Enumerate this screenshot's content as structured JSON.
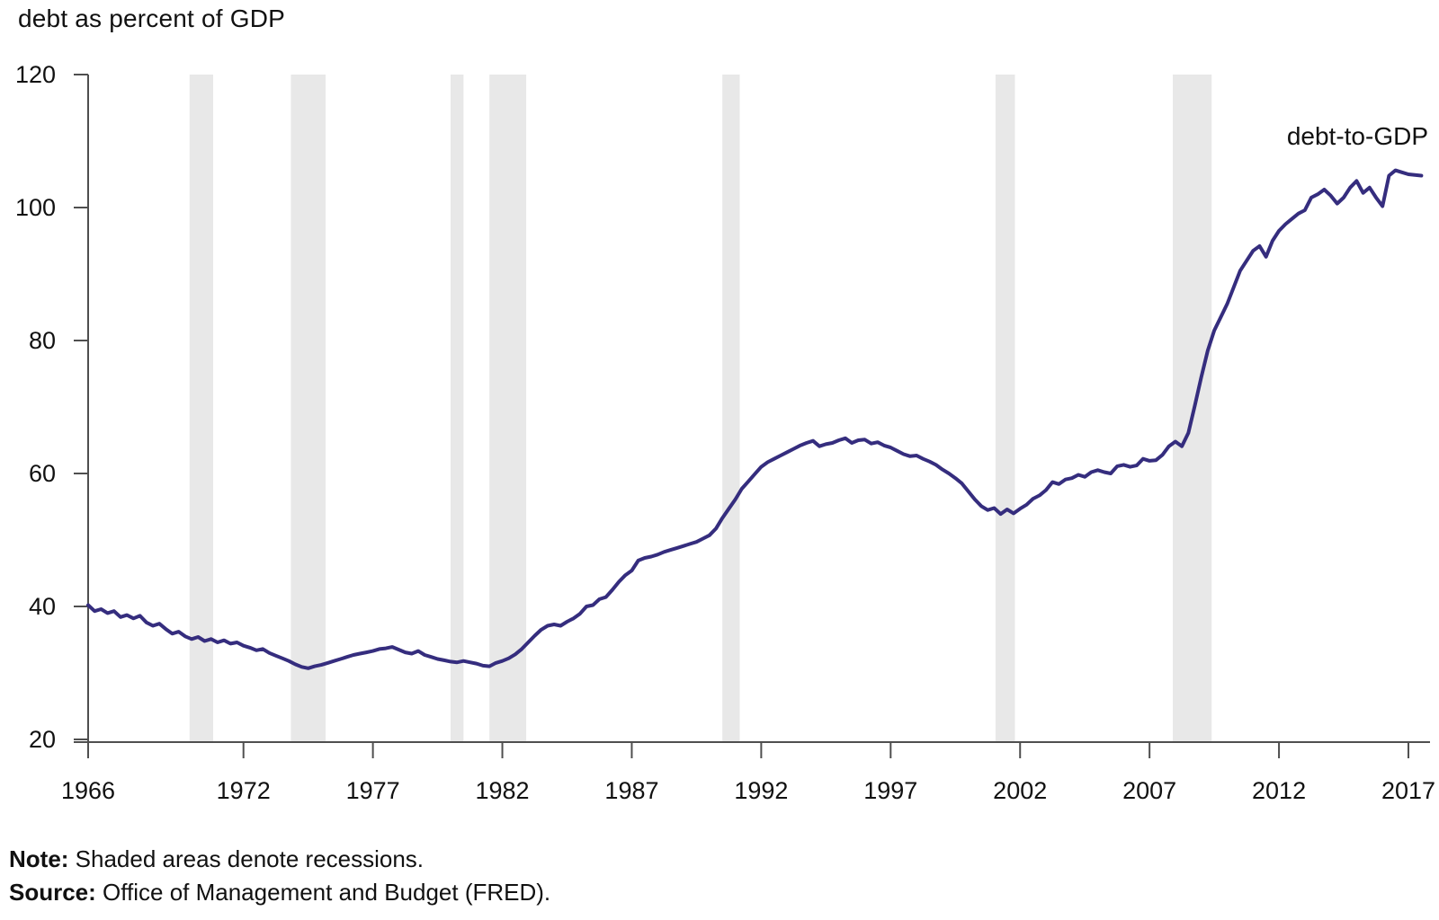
{
  "figure": {
    "title": "debt as percent of GDP",
    "series_label": "debt-to-GDP",
    "note_label": "Note:",
    "note_text": " Shaded areas denote recessions.",
    "source_label": "Source:",
    "source_text": " Office of Management and Budget (FRED).",
    "colors": {
      "line": "#352d7e",
      "recession_band": "#e8e8e8",
      "axis": "#4f4f4f",
      "text": "#111111",
      "background": "#ffffff"
    }
  },
  "chart_data": {
    "type": "line",
    "title": "debt as percent of GDP",
    "ylabel": "debt as percent of GDP",
    "xlabel": "",
    "ylim": [
      20,
      120
    ],
    "xlim": [
      1966,
      2017.84
    ],
    "grid": false,
    "legend_position": "annotation-top-right",
    "x_ticks": [
      1966,
      1972,
      1977,
      1982,
      1987,
      1992,
      1997,
      2002,
      2007,
      2012,
      2017
    ],
    "y_ticks": [
      20,
      40,
      60,
      80,
      100,
      120
    ],
    "recessions": [
      [
        1969.92,
        1970.83
      ],
      [
        1973.83,
        1975.17
      ],
      [
        1980.0,
        1980.5
      ],
      [
        1981.5,
        1982.92
      ],
      [
        1990.5,
        1991.17
      ],
      [
        2001.05,
        2001.8
      ],
      [
        2007.9,
        2009.4
      ]
    ],
    "series": [
      {
        "name": "debt-to-GDP",
        "start_year": 1966,
        "period_years": 0.25,
        "values": [
          40.2,
          39.3,
          39.6,
          39.0,
          39.3,
          38.4,
          38.7,
          38.2,
          38.6,
          37.6,
          37.1,
          37.4,
          36.6,
          35.9,
          36.2,
          35.5,
          35.1,
          35.4,
          34.8,
          35.1,
          34.6,
          34.9,
          34.4,
          34.6,
          34.1,
          33.8,
          33.4,
          33.6,
          33.0,
          32.6,
          32.2,
          31.8,
          31.3,
          30.9,
          30.7,
          31.0,
          31.2,
          31.5,
          31.8,
          32.1,
          32.4,
          32.7,
          32.9,
          33.1,
          33.3,
          33.6,
          33.7,
          33.9,
          33.5,
          33.1,
          32.9,
          33.3,
          32.7,
          32.4,
          32.1,
          31.9,
          31.7,
          31.6,
          31.8,
          31.6,
          31.4,
          31.1,
          31.0,
          31.5,
          31.8,
          32.2,
          32.8,
          33.6,
          34.6,
          35.6,
          36.5,
          37.1,
          37.3,
          37.1,
          37.7,
          38.2,
          38.9,
          40.0,
          40.2,
          41.1,
          41.4,
          42.5,
          43.7,
          44.7,
          45.4,
          46.9,
          47.3,
          47.5,
          47.8,
          48.2,
          48.5,
          48.8,
          49.1,
          49.4,
          49.7,
          50.2,
          50.7,
          51.7,
          53.3,
          54.7,
          56.1,
          57.7,
          58.8,
          59.9,
          61.0,
          61.7,
          62.2,
          62.7,
          63.2,
          63.7,
          64.2,
          64.6,
          64.9,
          64.1,
          64.4,
          64.6,
          65.0,
          65.3,
          64.6,
          65.0,
          65.1,
          64.5,
          64.7,
          64.2,
          63.9,
          63.4,
          62.9,
          62.6,
          62.7,
          62.2,
          61.8,
          61.3,
          60.6,
          60.0,
          59.3,
          58.5,
          57.3,
          56.1,
          55.1,
          54.5,
          54.8,
          53.9,
          54.6,
          54.0,
          54.7,
          55.3,
          56.2,
          56.7,
          57.5,
          58.7,
          58.4,
          59.1,
          59.3,
          59.8,
          59.5,
          60.2,
          60.5,
          60.2,
          60.0,
          61.1,
          61.3,
          61.0,
          61.2,
          62.2,
          61.9,
          62.0,
          62.8,
          64.1,
          64.8,
          64.1,
          66.1,
          70.2,
          74.5,
          78.5,
          81.5,
          83.5,
          85.5,
          88.0,
          90.5,
          92.0,
          93.5,
          94.2,
          92.6,
          95.0,
          96.5,
          97.5,
          98.3,
          99.1,
          99.6,
          101.5,
          102.0,
          102.7,
          101.8,
          100.6,
          101.5,
          103.0,
          104.0,
          102.2,
          103.0,
          101.5,
          100.2,
          104.8,
          105.6,
          105.3,
          105.0,
          104.9,
          104.8
        ]
      }
    ]
  }
}
